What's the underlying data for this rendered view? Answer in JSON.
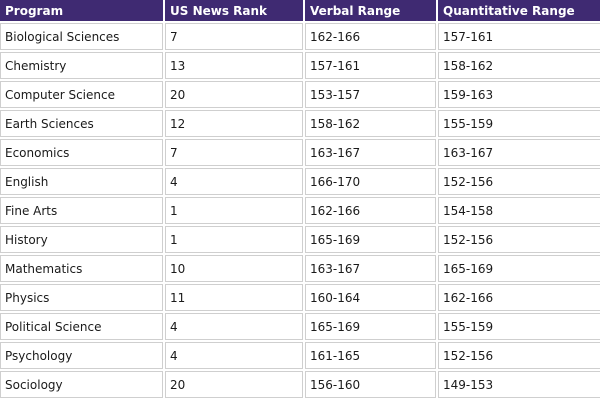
{
  "table": {
    "headers": [
      "Program",
      "US News Rank",
      "Verbal Range",
      "Quantitative Range"
    ],
    "rows": [
      [
        "Biological Sciences",
        "7",
        "162-166",
        "157-161"
      ],
      [
        "Chemistry",
        "13",
        "157-161",
        "158-162"
      ],
      [
        "Computer Science",
        "20",
        "153-157",
        "159-163"
      ],
      [
        "Earth Sciences",
        "12",
        "158-162",
        "155-159"
      ],
      [
        "Economics",
        "7",
        "163-167",
        "163-167"
      ],
      [
        "English",
        "4",
        "166-170",
        "152-156"
      ],
      [
        "Fine Arts",
        "1",
        "162-166",
        "154-158"
      ],
      [
        "History",
        "1",
        "165-169",
        "152-156"
      ],
      [
        "Mathematics",
        "10",
        "163-167",
        "165-169"
      ],
      [
        "Physics",
        "11",
        "160-164",
        "162-166"
      ],
      [
        "Political Science",
        "4",
        "165-169",
        "155-159"
      ],
      [
        "Psychology",
        "4",
        "161-165",
        "152-156"
      ],
      [
        "Sociology",
        "20",
        "156-160",
        "149-153"
      ]
    ]
  },
  "colors": {
    "header_bg": "#3f2a72",
    "header_text": "#ffffff",
    "cell_border": "#cfcfcf"
  }
}
